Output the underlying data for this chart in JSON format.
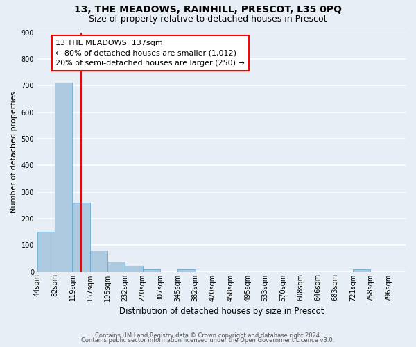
{
  "title": "13, THE MEADOWS, RAINHILL, PRESCOT, L35 0PQ",
  "subtitle": "Size of property relative to detached houses in Prescot",
  "xlabel": "Distribution of detached houses by size in Prescot",
  "ylabel": "Number of detached properties",
  "bar_values": [
    150,
    710,
    260,
    80,
    38,
    22,
    10,
    0,
    8,
    0,
    0,
    0,
    0,
    0,
    0,
    0,
    0,
    0,
    10,
    0,
    0
  ],
  "bin_labels": [
    "44sqm",
    "82sqm",
    "119sqm",
    "157sqm",
    "195sqm",
    "232sqm",
    "270sqm",
    "307sqm",
    "345sqm",
    "382sqm",
    "420sqm",
    "458sqm",
    "495sqm",
    "533sqm",
    "570sqm",
    "608sqm",
    "646sqm",
    "683sqm",
    "721sqm",
    "758sqm",
    "796sqm"
  ],
  "n_bins": 21,
  "bar_color": "#adc9e0",
  "bar_edge_color": "#6aaad4",
  "vline_position": 2.5,
  "vline_color": "red",
  "ylim": [
    0,
    900
  ],
  "yticks": [
    0,
    100,
    200,
    300,
    400,
    500,
    600,
    700,
    800,
    900
  ],
  "annotation_title": "13 THE MEADOWS: 137sqm",
  "annotation_line1": "← 80% of detached houses are smaller (1,012)",
  "annotation_line2": "20% of semi-detached houses are larger (250) →",
  "annotation_box_color": "white",
  "annotation_box_edge_color": "red",
  "footer_line1": "Contains HM Land Registry data © Crown copyright and database right 2024.",
  "footer_line2": "Contains public sector information licensed under the Open Government Licence v3.0.",
  "background_color": "#e8eef5",
  "grid_color": "white",
  "title_fontsize": 10,
  "subtitle_fontsize": 9,
  "ylabel_fontsize": 8,
  "xlabel_fontsize": 8.5,
  "tick_fontsize": 7,
  "footer_fontsize": 6
}
